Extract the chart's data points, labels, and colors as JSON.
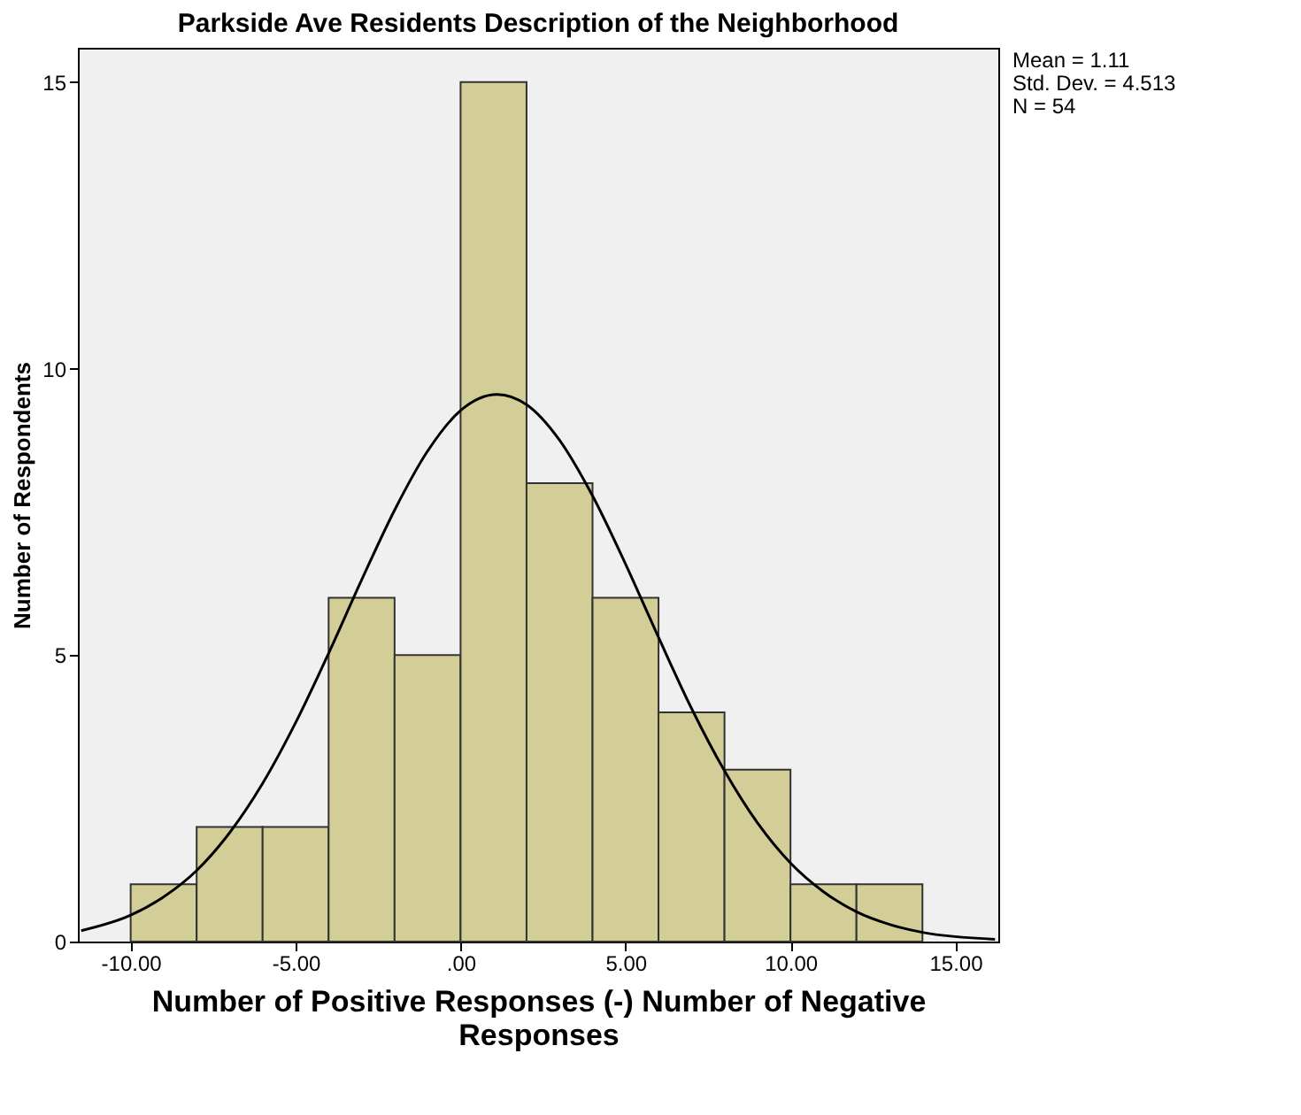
{
  "chart_data": {
    "type": "histogram",
    "title": "Parkside Ave Residents Description of the Neighborhood",
    "xlabel": "Number of Positive Responses (-) Number of Negative Responses",
    "ylabel": "Number of Respondents",
    "series": [
      {
        "type": "histogram",
        "color": "#d3ce97",
        "bins": [
          -10,
          -8,
          -6,
          -4,
          -2,
          0,
          2,
          4,
          6,
          8,
          10,
          12,
          14
        ],
        "values": [
          1,
          2,
          2,
          6,
          5,
          15,
          8,
          6,
          4,
          3,
          1,
          1
        ]
      },
      {
        "type": "line",
        "color": "#000000",
        "x": [
          -11.5,
          -10,
          -9,
          -8,
          -7,
          -6,
          -5,
          -4,
          -3,
          -2,
          -1,
          0,
          1.11,
          2,
          3,
          4,
          5,
          6,
          7,
          8,
          9,
          10,
          11,
          12,
          13,
          14,
          16.2
        ],
        "values": [
          0.19,
          0.46,
          0.78,
          1.24,
          1.9,
          2.76,
          3.82,
          5.03,
          6.31,
          7.53,
          8.56,
          9.27,
          9.55,
          9.37,
          8.75,
          7.78,
          6.59,
          5.31,
          4.07,
          2.98,
          2.07,
          1.37,
          0.87,
          0.52,
          0.3,
          0.16,
          0.04
        ]
      }
    ],
    "xlim": [
      -11.6,
      16.3
    ],
    "ylim": [
      0,
      15.6
    ],
    "xticks": [
      {
        "value": -10,
        "label": "-10.00"
      },
      {
        "value": -5,
        "label": "-5.00"
      },
      {
        "value": 0,
        "label": ".00"
      },
      {
        "value": 5,
        "label": "5.00"
      },
      {
        "value": 10,
        "label": "10.00"
      },
      {
        "value": 15,
        "label": "15.00"
      }
    ],
    "yticks": [
      0,
      5,
      10,
      15
    ],
    "grid": false,
    "annotations": [
      "Mean = 1.11",
      "Std. Dev. = 4.513",
      "N = 54"
    ]
  }
}
